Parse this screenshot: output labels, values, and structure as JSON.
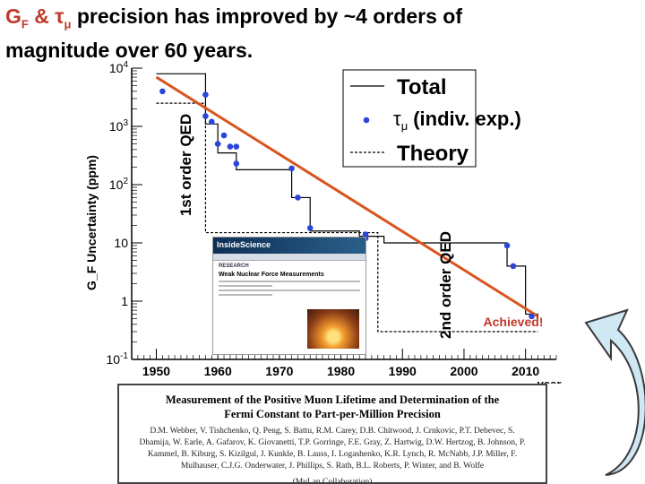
{
  "title": {
    "prefix_symbol": "G",
    "prefix_sub": "F",
    "amp": "&",
    "tau_symbol": "τ",
    "tau_sub": "μ",
    "rest_line1": "precision has improved by ~4 orders of",
    "line2": "magnitude over 60 years."
  },
  "chart_data": {
    "type": "scatter",
    "title": "",
    "ylabel": "G_F Uncertainty (ppm)",
    "xlabel": "year",
    "x_ticks": [
      "1950",
      "1960",
      "1970",
      "1980",
      "1990",
      "2000",
      "2010"
    ],
    "y_ticks": [
      "10^-1",
      "1",
      "10",
      "10^2",
      "10^3",
      "10^4"
    ],
    "xlim": [
      1946,
      2015
    ],
    "ylim_log10": [
      -1,
      4
    ],
    "grid": false,
    "legend_position": "top-right",
    "legend": {
      "total": "Total",
      "indiv_prefix": "τ",
      "indiv_sub": "μ",
      "indiv_suffix": "(indiv. exp.)",
      "theory": "Theory"
    },
    "annotations": {
      "first_order": "1st order QED",
      "second_order": "2nd order QED",
      "achieved": "Achieved!"
    },
    "series": [
      {
        "name": "τμ (indiv. exp.)",
        "points": [
          {
            "x": 1951,
            "y": 4000
          },
          {
            "x": 1958,
            "y": 3500
          },
          {
            "x": 1958,
            "y": 1500
          },
          {
            "x": 1959,
            "y": 1200
          },
          {
            "x": 1960,
            "y": 500
          },
          {
            "x": 1961,
            "y": 700
          },
          {
            "x": 1962,
            "y": 450
          },
          {
            "x": 1963,
            "y": 230
          },
          {
            "x": 1963,
            "y": 450
          },
          {
            "x": 1972,
            "y": 190
          },
          {
            "x": 1973,
            "y": 60
          },
          {
            "x": 1975,
            "y": 18
          },
          {
            "x": 1984,
            "y": 12
          },
          {
            "x": 1984,
            "y": 14
          },
          {
            "x": 2007,
            "y": 9
          },
          {
            "x": 2008,
            "y": 4
          },
          {
            "x": 2011,
            "y": 0.55
          }
        ]
      },
      {
        "name": "Total",
        "steps": [
          {
            "x": 1950,
            "y": 8000
          },
          {
            "x": 1958,
            "y": 1100
          },
          {
            "x": 1960,
            "y": 350
          },
          {
            "x": 1963,
            "y": 180
          },
          {
            "x": 1972,
            "y": 60
          },
          {
            "x": 1975,
            "y": 16
          },
          {
            "x": 1983,
            "y": 13
          },
          {
            "x": 1987,
            "y": 10
          },
          {
            "x": 2007,
            "y": 4
          },
          {
            "x": 2010,
            "y": 0.6
          },
          {
            "x": 2012,
            "y": 0.5
          }
        ]
      },
      {
        "name": "Theory",
        "steps": [
          {
            "x": 1950,
            "y": 2500
          },
          {
            "x": 1958,
            "y": 2500
          },
          {
            "x": 1958,
            "y": 15
          },
          {
            "x": 1986,
            "y": 15
          },
          {
            "x": 1986,
            "y": 0.3
          },
          {
            "x": 2012,
            "y": 0.3
          }
        ]
      },
      {
        "name": "trend",
        "line": [
          {
            "x": 1950,
            "y": 7000
          },
          {
            "x": 2012,
            "y": 0.55
          }
        ]
      }
    ],
    "colors": {
      "points": "#2b45d8",
      "trend": "#d9541e",
      "achieved": "#c0392b",
      "axis": "#000000"
    }
  },
  "article": {
    "masthead": "InsideScience",
    "section": "RESEARCH",
    "headline": "Weak Nuclear Force Measurements"
  },
  "paper": {
    "title": "Measurement of the Positive Muon Lifetime and Determination of the Fermi Constant to Part-per-Million Precision",
    "authors": "D.M. Webber, V. Tishchenko, Q. Peng, S. Battu, R.M. Carey, D.B. Chitwood, J. Crnkovic, P.T. Debevec, S. Dhamija, W. Earle, A. Gafarov, K. Giovanetti, T.P. Gorringe, F.E. Gray, Z. Hartwig, D.W. Hertzog, B. Johnson, P. Kammel, B. Kiburg, S. Kizilgul, J. Kunkle, B. Lauss, I. Logashenko, K.R. Lynch, R. McNabb, J.P. Miller, F. Mulhauser, C.J.G. Onderwater, J. Phillips, S. Rath, B.L. Roberts, P. Winter, and B. Wolfe",
    "collab": "(MuLan Collaboration)"
  }
}
